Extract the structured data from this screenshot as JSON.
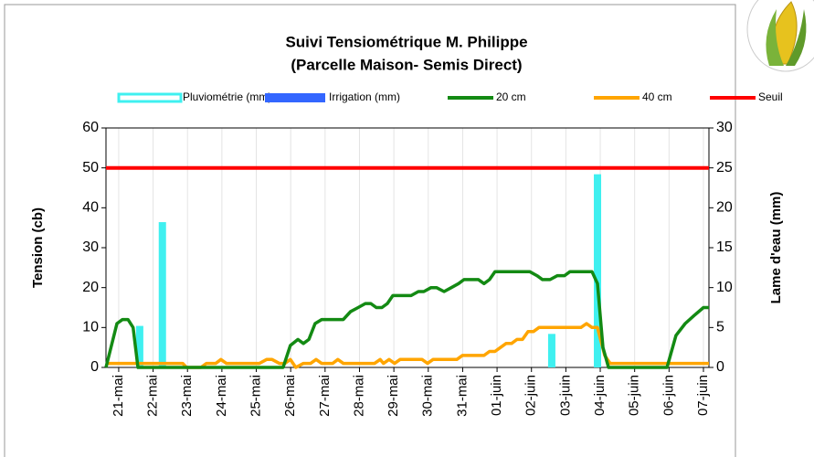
{
  "chart_data": {
    "type": "line",
    "title": "Suivi Tensiométrique M. Philippe",
    "subtitle": "(Parcelle Maison- Semis Direct)",
    "y_label": "Tension (cb)",
    "y2_label": "Lame d'eau (mm)",
    "xlim": [
      -0.37,
      17.16
    ],
    "xticks": [
      {
        "value": 0,
        "label": "21-mai"
      },
      {
        "value": 1,
        "label": "22-mai"
      },
      {
        "value": 2,
        "label": "23-mai"
      },
      {
        "value": 3,
        "label": "24-mai"
      },
      {
        "value": 4,
        "label": "25-mai"
      },
      {
        "value": 5,
        "label": "26-mai"
      },
      {
        "value": 6,
        "label": "27-mai"
      },
      {
        "value": 7,
        "label": "28-mai"
      },
      {
        "value": 8,
        "label": "29-mai"
      },
      {
        "value": 9,
        "label": "30-mai"
      },
      {
        "value": 10,
        "label": "31-mai"
      },
      {
        "value": 11,
        "label": "01-juin"
      },
      {
        "value": 12,
        "label": "02-juin"
      },
      {
        "value": 13,
        "label": "03-juin"
      },
      {
        "value": 14,
        "label": "04-juin"
      },
      {
        "value": 15,
        "label": "05-juin"
      },
      {
        "value": 16,
        "label": "06-juin"
      },
      {
        "value": 17,
        "label": "07-juin"
      }
    ],
    "ylim": [
      0,
      60
    ],
    "yticks": [
      0,
      10,
      20,
      30,
      40,
      50,
      60
    ],
    "y2lim": [
      0,
      30
    ],
    "y2ticks": [
      0,
      5,
      10,
      15,
      20,
      25,
      30
    ],
    "grid": "x",
    "legend": "top",
    "series": [
      {
        "name": "Pluviométrie (mm)",
        "type": "bar",
        "axis": "y2",
        "color": "#3ff0f0",
        "x": [
          0.61,
          1.27,
          12.59,
          13.92
        ],
        "values": [
          5.2,
          18.2,
          4.2,
          24.2
        ]
      },
      {
        "name": "Irrigation (mm)",
        "type": "bar",
        "axis": "y2",
        "color": "#3366ff",
        "x": [
          0.61,
          1.27,
          12.59,
          13.92
        ],
        "values": [
          0,
          0,
          0,
          0
        ]
      },
      {
        "name": "20 cm",
        "type": "line",
        "color": "#138a13",
        "x": [
          -0.37,
          -0.05,
          0.11,
          0.27,
          0.42,
          0.56,
          4.78,
          4.99,
          5.21,
          5.37,
          5.53,
          5.71,
          5.9,
          6.53,
          6.74,
          6.96,
          7.17,
          7.33,
          7.49,
          7.65,
          7.81,
          7.97,
          8.5,
          8.71,
          8.87,
          9.08,
          9.24,
          9.46,
          9.67,
          9.88,
          10.04,
          10.46,
          10.62,
          10.78,
          10.94,
          11.95,
          12.16,
          12.32,
          12.54,
          12.75,
          12.96,
          13.12,
          13.76,
          13.92,
          14.08,
          14.24,
          15.94,
          16.2,
          16.47,
          16.73,
          17.0,
          17.16
        ],
        "values": [
          0,
          11,
          12,
          12,
          10,
          0,
          0,
          5.5,
          7,
          6,
          7,
          11,
          12,
          12,
          14,
          15,
          16,
          16,
          15,
          15,
          16,
          18,
          18,
          19,
          19,
          20,
          20,
          19,
          20,
          21,
          22,
          22,
          21,
          22,
          24,
          24,
          23,
          22,
          22,
          23,
          23,
          24,
          24,
          21,
          5,
          0,
          0,
          8,
          11,
          13,
          15,
          15
        ]
      },
      {
        "name": "40 cm",
        "type": "line",
        "color": "#ffa500",
        "x": [
          -0.37,
          1.86,
          1.97,
          2.39,
          2.55,
          2.82,
          2.97,
          3.13,
          4.09,
          4.3,
          4.46,
          4.67,
          4.83,
          4.99,
          5.15,
          5.37,
          5.58,
          5.74,
          5.9,
          6.22,
          6.37,
          6.53,
          7.44,
          7.6,
          7.7,
          7.86,
          8.02,
          8.18,
          8.82,
          8.98,
          9.14,
          9.83,
          9.99,
          10.62,
          10.78,
          10.94,
          11.1,
          11.26,
          11.42,
          11.58,
          11.74,
          11.9,
          12.06,
          12.22,
          13.44,
          13.6,
          13.76,
          13.92,
          14.13,
          14.29,
          17.16
        ],
        "values": [
          1,
          1,
          0,
          0,
          1,
          1,
          2,
          1,
          1,
          2,
          2,
          1,
          1,
          2,
          0,
          1,
          1,
          2,
          1,
          1,
          2,
          1,
          1,
          2,
          1,
          2,
          1,
          2,
          2,
          1,
          2,
          2,
          3,
          3,
          4,
          4,
          5,
          6,
          6,
          7,
          7,
          9,
          9,
          10,
          10,
          11,
          10,
          10,
          3,
          1,
          1
        ]
      },
      {
        "name": "Seuil",
        "type": "line",
        "color": "#ff0000",
        "x": [
          -0.37,
          17.16
        ],
        "values": [
          50,
          50
        ]
      }
    ]
  }
}
